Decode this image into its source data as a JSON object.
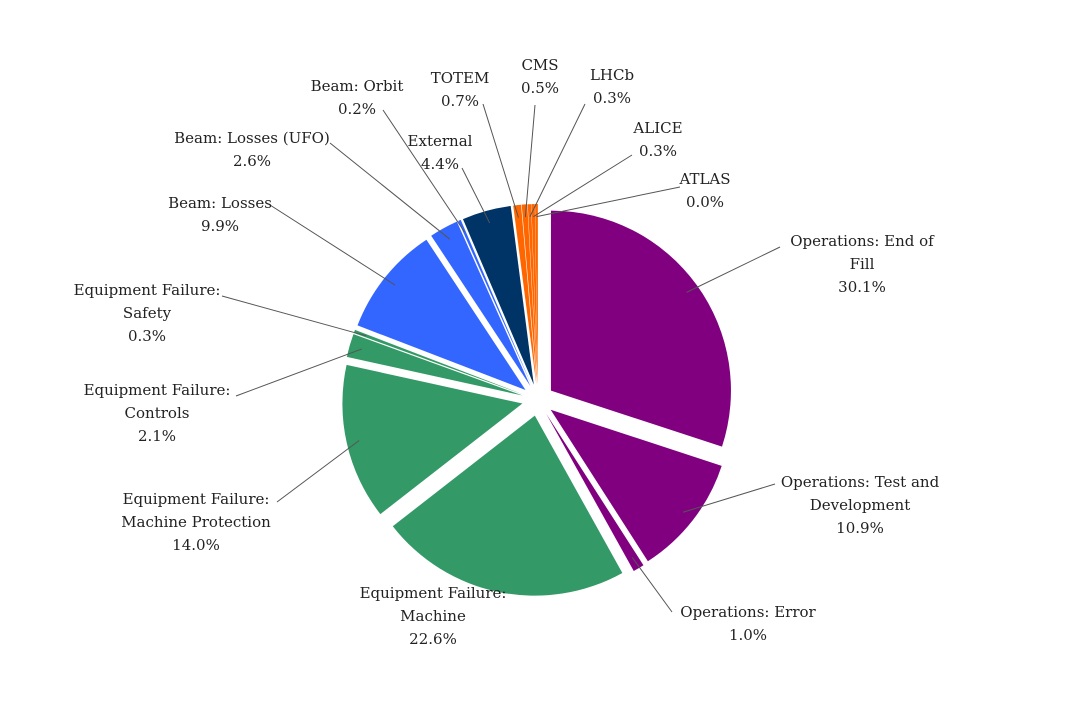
{
  "chart_data": {
    "type": "pie",
    "title": "",
    "slices": [
      {
        "label": "Operations: End of Fill",
        "value": 30.1,
        "value_label": "30.1%",
        "color": "#800080"
      },
      {
        "label": "Operations: Test and Development",
        "value": 10.9,
        "value_label": "10.9%",
        "color": "#800080"
      },
      {
        "label": "Operations: Error",
        "value": 1.0,
        "value_label": "1.0%",
        "color": "#800080"
      },
      {
        "label": "Equipment Failure: Machine",
        "value": 22.6,
        "value_label": "22.6%",
        "color": "#339966"
      },
      {
        "label": "Equipment Failure: Machine Protection",
        "value": 14.0,
        "value_label": "14.0%",
        "color": "#339966"
      },
      {
        "label": "Equipment Failure: Controls",
        "value": 2.1,
        "value_label": "2.1%",
        "color": "#339966"
      },
      {
        "label": "Equipment Failure: Safety",
        "value": 0.3,
        "value_label": "0.3%",
        "color": "#339966"
      },
      {
        "label": "Beam: Losses",
        "value": 9.9,
        "value_label": "9.9%",
        "color": "#3366FF"
      },
      {
        "label": "Beam: Losses (UFO)",
        "value": 2.6,
        "value_label": "2.6%",
        "color": "#3366FF"
      },
      {
        "label": "Beam: Orbit",
        "value": 0.2,
        "value_label": "0.2%",
        "color": "#3366FF"
      },
      {
        "label": "External",
        "value": 4.4,
        "value_label": "4.4%",
        "color": "#003366"
      },
      {
        "label": "TOTEM",
        "value": 0.7,
        "value_label": "0.7%",
        "color": "#FF6600"
      },
      {
        "label": "CMS",
        "value": 0.5,
        "value_label": "0.5%",
        "color": "#FF6600"
      },
      {
        "label": "LHCb",
        "value": 0.3,
        "value_label": "0.3%",
        "color": "#FF6600"
      },
      {
        "label": "ALICE",
        "value": 0.3,
        "value_label": "0.3%",
        "color": "#FF6600"
      },
      {
        "label": "ATLAS",
        "value": 0.0,
        "value_label": "0.0%",
        "color": "#FF6600"
      }
    ]
  }
}
